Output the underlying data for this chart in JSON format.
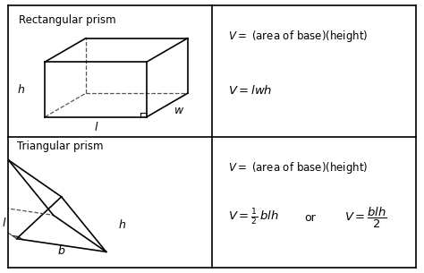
{
  "bg_color": "#ffffff",
  "border_color": "#000000",
  "text_color": "#000000",
  "title1": "Rectangular prism",
  "title2": "Triangular prism",
  "rect_formula1": "$V = $ (area of base)(height)",
  "rect_formula2": "$V = lwh$",
  "tri_formula1": "$V = $ (area of base)(height)",
  "tri_formula2_a": "$V = \\frac{1}{2}\\, blh$",
  "tri_formula2_or": "or",
  "tri_formula2_b": "$V = \\dfrac{blh}{2}$",
  "label_h1": "$h$",
  "label_l1": "$l$",
  "label_w1": "$w$",
  "label_h2": "$h$",
  "label_l2": "$l$",
  "label_b2": "$b$"
}
